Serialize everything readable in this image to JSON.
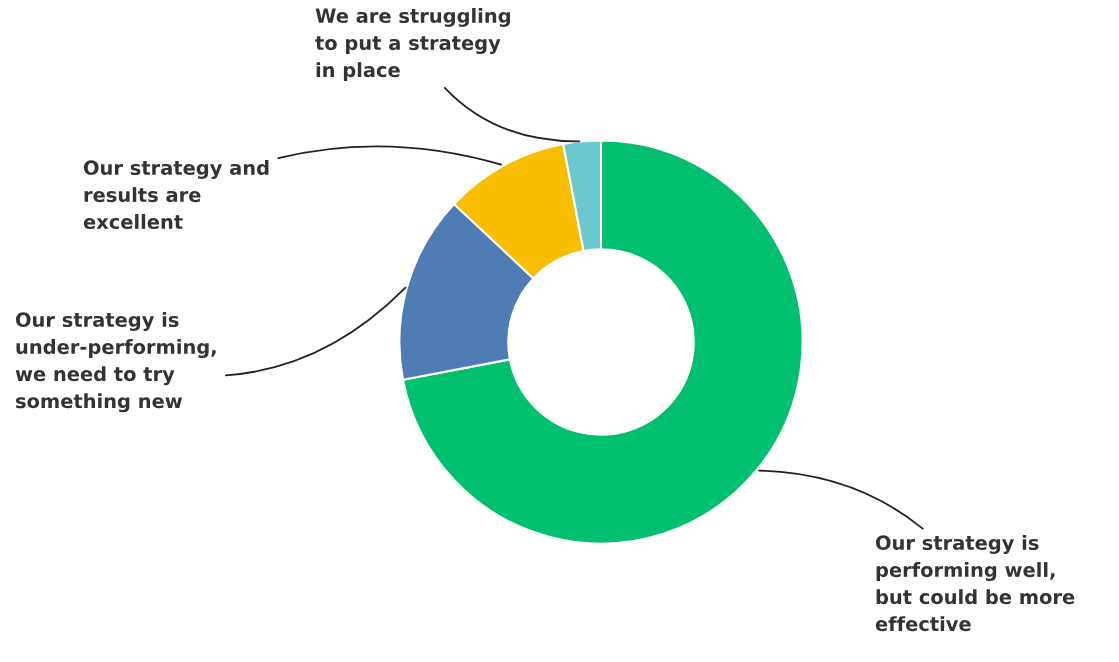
{
  "chart_data": {
    "type": "donut",
    "categories": [
      "Our strategy is performing well, but could be more effective",
      "Our strategy is under-performing, we need to try something new",
      "Our strategy and results are excellent",
      "We are struggling to put a strategy in place"
    ],
    "values": [
      72,
      15,
      10,
      3
    ],
    "colors": [
      "#00bf6f",
      "#507cb6",
      "#f9be00",
      "#6bc8cd"
    ]
  }
}
